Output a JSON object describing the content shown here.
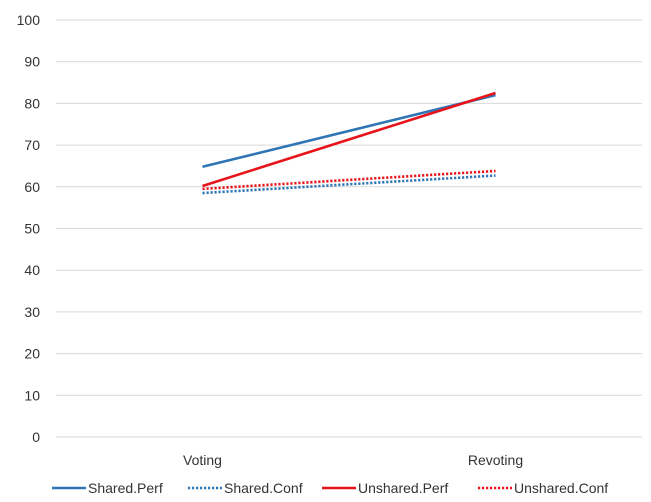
{
  "chart_data": {
    "type": "line",
    "categories": [
      "Voting",
      "Revoting"
    ],
    "y_ticks": [
      "0",
      "10",
      "20",
      "30",
      "40",
      "50",
      "60",
      "70",
      "80",
      "90",
      "100"
    ],
    "ylim": [
      0,
      100
    ],
    "grid": true,
    "legend_position": "bottom",
    "series": [
      {
        "name": "Shared.Perf",
        "values": [
          64.8,
          82.0
        ],
        "color": "#2e75b6",
        "style": "solid"
      },
      {
        "name": "Shared.Conf",
        "values": [
          58.5,
          62.7
        ],
        "color": "#2e75b6",
        "style": "dotted"
      },
      {
        "name": "Unshared.Perf",
        "values": [
          60.2,
          82.5
        ],
        "color": "#e8141b",
        "style": "solid"
      },
      {
        "name": "Unshared.Conf",
        "values": [
          59.5,
          63.8
        ],
        "color": "#e8141b",
        "style": "dotted"
      }
    ]
  }
}
